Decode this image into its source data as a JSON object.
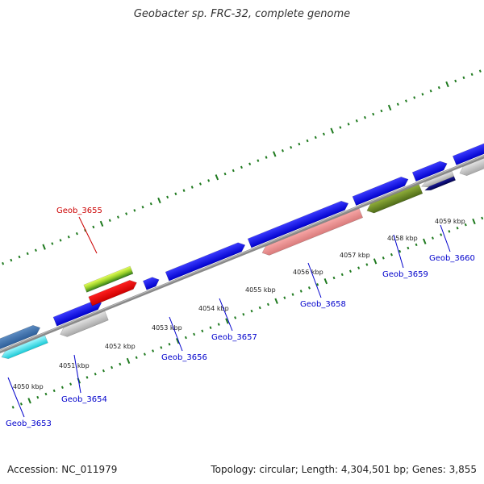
{
  "title": "Geobacter sp. FRC-32, complete genome",
  "footer": {
    "accession": "Accession: NC_011979",
    "summary": "Topology: circular; Length: 4,304,501 bp; Genes: 3,855"
  },
  "colors": {
    "backbone": "#8c8c8c",
    "gc_ticks": "#1f7a1f",
    "label_blue": "#0000cc",
    "label_red": "#cc0000",
    "callout_line_blue": "#0000cc",
    "callout_line_red": "#cc0000"
  },
  "scale_labels": [
    "4050 kbp",
    "4051 kbp",
    "4052 kbp",
    "4053 kbp",
    "4054 kbp",
    "4055 kbp",
    "4056 kbp",
    "4057 kbp",
    "4058 kbp",
    "4059 kbp"
  ],
  "genes": [
    {
      "name": "Geob_3653",
      "color": "blue"
    },
    {
      "name": "Geob_3654",
      "color": "blue"
    },
    {
      "name": "Geob_3655",
      "color": "red"
    },
    {
      "name": "Geob_3656",
      "color": "blue"
    },
    {
      "name": "Geob_3657",
      "color": "blue"
    },
    {
      "name": "Geob_3658",
      "color": "blue"
    },
    {
      "name": "Geob_3659",
      "color": "blue"
    },
    {
      "name": "Geob_3660",
      "color": "blue"
    }
  ]
}
